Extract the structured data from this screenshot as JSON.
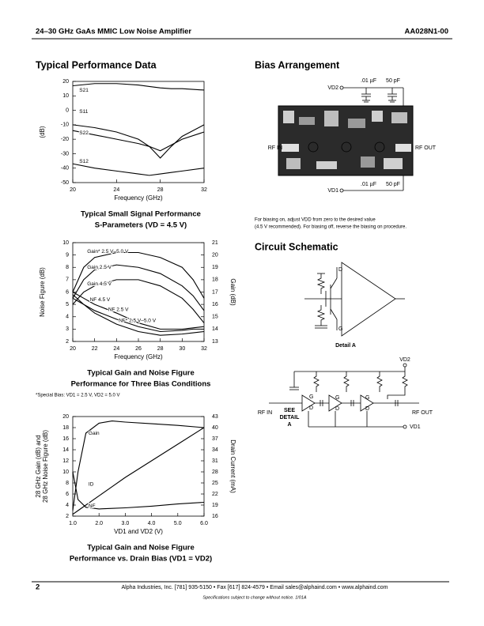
{
  "header": {
    "title": "24–30 GHz GaAs MMIC Low Noise Amplifier",
    "part_number": "AA028N1-00"
  },
  "sections": {
    "performance": "Typical Performance Data",
    "bias": "Bias Arrangement",
    "schematic": "Circuit Schematic"
  },
  "bias_arrangement": {
    "vd2": "VD2",
    "vd2_cap_1": ".01 µF",
    "vd2_cap_2": "50 pF",
    "rf_in": "RF IN",
    "rf_out": "RF OUT",
    "vd1": "VD1",
    "vd1_cap_1": ".01 µF",
    "vd1_cap_2": "50 pF",
    "note": [
      "For biasing on, adjust VDD from zero to the desired value",
      "(4.5 V recommended). For biasing off, reverse the biasing on procedure."
    ]
  },
  "schematic": {
    "detail": {
      "drain": "D",
      "gate": "G",
      "caption": "Detail A"
    },
    "vd2": "VD2",
    "rf_in": "RF IN",
    "rf_out": "RF OUT",
    "vd1": "VD1",
    "see_detail": [
      "SEE",
      "DETAIL",
      "A"
    ],
    "stages": [
      {
        "gate": "G",
        "drain": "D"
      },
      {
        "gate": "G",
        "drain": "D"
      },
      {
        "gate": "G",
        "drain": "D"
      }
    ]
  },
  "footnote": "*Special Bias: VD1 = 2.5 V, VD2 = 5.0 V",
  "footer": {
    "page": "2",
    "contact": "Alpha Industries, Inc. [781] 935-5150 • Fax [617] 824-4579 • Email sales@alphaind.com • www.alphaind.com",
    "notice": "Specifications subject to change without notice.  1/01A"
  },
  "chart_data": [
    {
      "type": "line",
      "title": [
        "Typical Small Signal Performance",
        "S-Parameters (VD = 4.5 V)"
      ],
      "xlabel": "Frequency (GHz)",
      "ylabel": "(dB)",
      "x": [
        20,
        22,
        24,
        26,
        27,
        28,
        29,
        30,
        32
      ],
      "xlim": [
        20,
        32
      ],
      "xticks": [
        20,
        24,
        28,
        32
      ],
      "ylim": [
        -50,
        20
      ],
      "yticks": [
        20,
        10,
        0,
        -10,
        -20,
        -30,
        -40,
        -50
      ],
      "grid": false,
      "series": [
        {
          "name": "S21",
          "color": "#000000",
          "values": [
            17,
            18.5,
            18.5,
            17.5,
            16.5,
            15.5,
            15,
            15,
            14
          ]
        },
        {
          "name": "S11",
          "color": "#000000",
          "values": [
            -10,
            -12,
            -15,
            -20,
            -25,
            -33,
            -25,
            -18,
            -10
          ]
        },
        {
          "name": "S22",
          "color": "#000000",
          "values": [
            -14,
            -17,
            -20,
            -23,
            -25,
            -28,
            -24,
            -20,
            -15
          ]
        },
        {
          "name": "S12",
          "color": "#000000",
          "values": [
            -37,
            -40,
            -42,
            -44,
            -45,
            -44,
            -43,
            -42,
            -40
          ]
        }
      ]
    },
    {
      "type": "line",
      "title": [
        "Typical Gain and Noise Figure",
        "Performance for Three Bias Conditions"
      ],
      "xlabel": "Frequency (GHz)",
      "ylabel": "Noise Figure (dB)",
      "y2label": "Gain (dB)",
      "x": [
        20,
        21,
        22,
        24,
        26,
        28,
        30,
        31,
        32
      ],
      "xlim": [
        20,
        32
      ],
      "xticks": [
        20,
        22,
        24,
        26,
        28,
        30,
        32
      ],
      "ylim": [
        2,
        10
      ],
      "yticks": [
        10,
        9,
        8,
        7,
        6,
        5,
        4,
        3,
        2
      ],
      "y2lim": [
        13,
        21
      ],
      "y2ticks": [
        21,
        20,
        19,
        18,
        17,
        16,
        15,
        14,
        13
      ],
      "grid": false,
      "series": [
        {
          "name": "Gain* 2.5 V–5.0 V",
          "color": "#000000",
          "axis": "y2",
          "values": [
            17,
            19,
            19.8,
            20.2,
            20.2,
            19.8,
            19,
            18,
            16.5
          ]
        },
        {
          "name": "Gain 2.5 V",
          "color": "#000000",
          "axis": "y2",
          "values": [
            16.5,
            18,
            18.8,
            19.2,
            19,
            18.5,
            17.5,
            16.7,
            15.5
          ]
        },
        {
          "name": "Gain 4.5 V",
          "color": "#000000",
          "axis": "y2",
          "values": [
            16,
            17,
            17.5,
            18,
            18,
            17.5,
            16.5,
            15.6,
            14.5
          ]
        },
        {
          "name": "NF 4.5 V",
          "color": "#000000",
          "values": [
            6,
            5.5,
            5,
            4.3,
            3.5,
            3,
            3,
            3.1,
            3.2
          ]
        },
        {
          "name": "NF 2.5 V",
          "color": "#000000",
          "values": [
            5.5,
            5,
            4.5,
            3.8,
            3.2,
            2.8,
            2.9,
            3,
            3
          ]
        },
        {
          "name": "NF* 2.5 V–5.0 V",
          "color": "#000000",
          "values": [
            5.8,
            5,
            4.3,
            3.4,
            2.8,
            2.5,
            2.6,
            2.7,
            2.8
          ]
        }
      ]
    },
    {
      "type": "line",
      "title": [
        "Typical Gain and Noise Figure",
        "Performance vs. Drain Bias (VD1 = VD2)"
      ],
      "xlabel": "VD1 and VD2 (V)",
      "ylabel": [
        "28 GHz Gain (dB) and",
        "28 GHz Noise Figure (dB)"
      ],
      "y2label": "Drain Current (mA)",
      "x": [
        1,
        1.2,
        1.5,
        2,
        2.5,
        3,
        4,
        5,
        6
      ],
      "xlim": [
        1,
        6
      ],
      "xticks": [
        {
          "value": 1,
          "label": "1.0"
        },
        {
          "value": 2,
          "label": "2.0"
        },
        {
          "value": 3,
          "label": "3.0"
        },
        {
          "value": 4,
          "label": "4.0"
        },
        {
          "value": 5,
          "label": "5.0"
        },
        {
          "value": 6,
          "label": "6.0"
        }
      ],
      "ylim": [
        2,
        20
      ],
      "yticks": [
        20,
        18,
        16,
        14,
        12,
        10,
        8,
        6,
        4,
        2
      ],
      "y2lim": [
        16,
        43
      ],
      "y2ticks": [
        43,
        40,
        37,
        34,
        31,
        28,
        25,
        22,
        19,
        16
      ],
      "grid": false,
      "series": [
        {
          "name": "Gain",
          "color": "#000000",
          "values": [
            3,
            10,
            17,
            18.8,
            19.2,
            19,
            18.7,
            18.4,
            18
          ]
        },
        {
          "name": "ID",
          "color": "#000000",
          "axis": "y2",
          "values": [
            16.5,
            17.5,
            19,
            21.5,
            24,
            26.5,
            31,
            35.5,
            40
          ]
        },
        {
          "name": "NF",
          "color": "#000000",
          "values": [
            10,
            5,
            3.6,
            3.3,
            3.4,
            3.5,
            3.8,
            4.2,
            4.5
          ]
        }
      ]
    }
  ]
}
